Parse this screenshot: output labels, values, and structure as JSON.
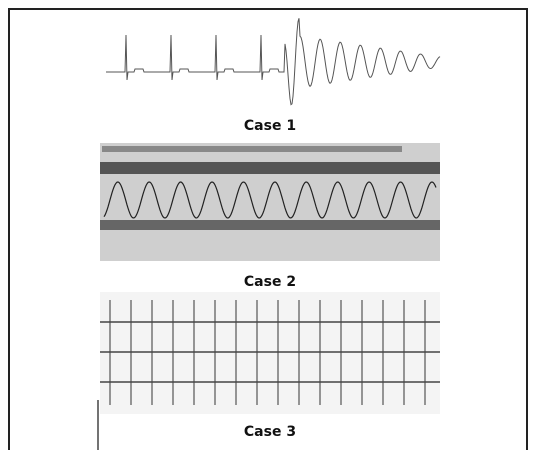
{
  "figure": {
    "panels": [
      {
        "caption": "Case 1"
      },
      {
        "caption": "Case 2"
      },
      {
        "caption": "Case 3"
      }
    ]
  }
}
